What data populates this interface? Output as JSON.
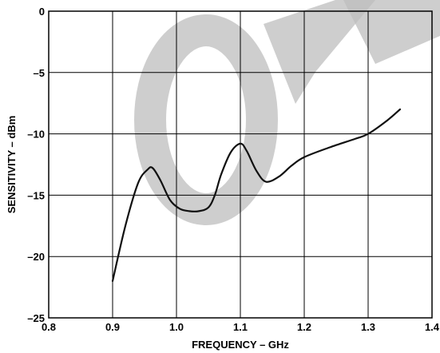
{
  "chart_data": {
    "type": "line",
    "title": "",
    "xlabel": "FREQUENCY – GHz",
    "ylabel": "SENSITIVITY – dBm",
    "xlim": [
      0.8,
      1.4
    ],
    "ylim": [
      -25,
      0
    ],
    "x_ticks": [
      0.8,
      0.9,
      1.0,
      1.1,
      1.2,
      1.3,
      1.4
    ],
    "x_tick_labels": [
      "0.8",
      "0.9",
      "1.0",
      "1.1",
      "1.2",
      "1.3",
      "1.4"
    ],
    "y_ticks": [
      0,
      -5,
      -10,
      -15,
      -20,
      -25
    ],
    "y_tick_labels": [
      "0",
      "–5",
      "–10",
      "–15",
      "–20",
      "–25"
    ],
    "grid": true,
    "legend": "none",
    "series": [
      {
        "color": "#111111",
        "x": [
          0.9,
          0.92,
          0.94,
          0.955,
          0.963,
          0.975,
          0.99,
          1.005,
          1.02,
          1.035,
          1.05,
          1.06,
          1.07,
          1.085,
          1.1,
          1.11,
          1.125,
          1.14,
          1.16,
          1.18,
          1.2,
          1.24,
          1.28,
          1.3,
          1.33,
          1.35
        ],
        "y": [
          -22,
          -17.5,
          -14,
          -12.9,
          -12.8,
          -13.8,
          -15.4,
          -16.1,
          -16.3,
          -16.3,
          -16.0,
          -15.0,
          -13.3,
          -11.5,
          -10.8,
          -11.4,
          -13.0,
          -13.9,
          -13.5,
          -12.6,
          -11.9,
          -11.1,
          -10.4,
          -10.0,
          -8.9,
          -8.0
        ]
      }
    ],
    "watermark_text": "OBSOLETE"
  }
}
